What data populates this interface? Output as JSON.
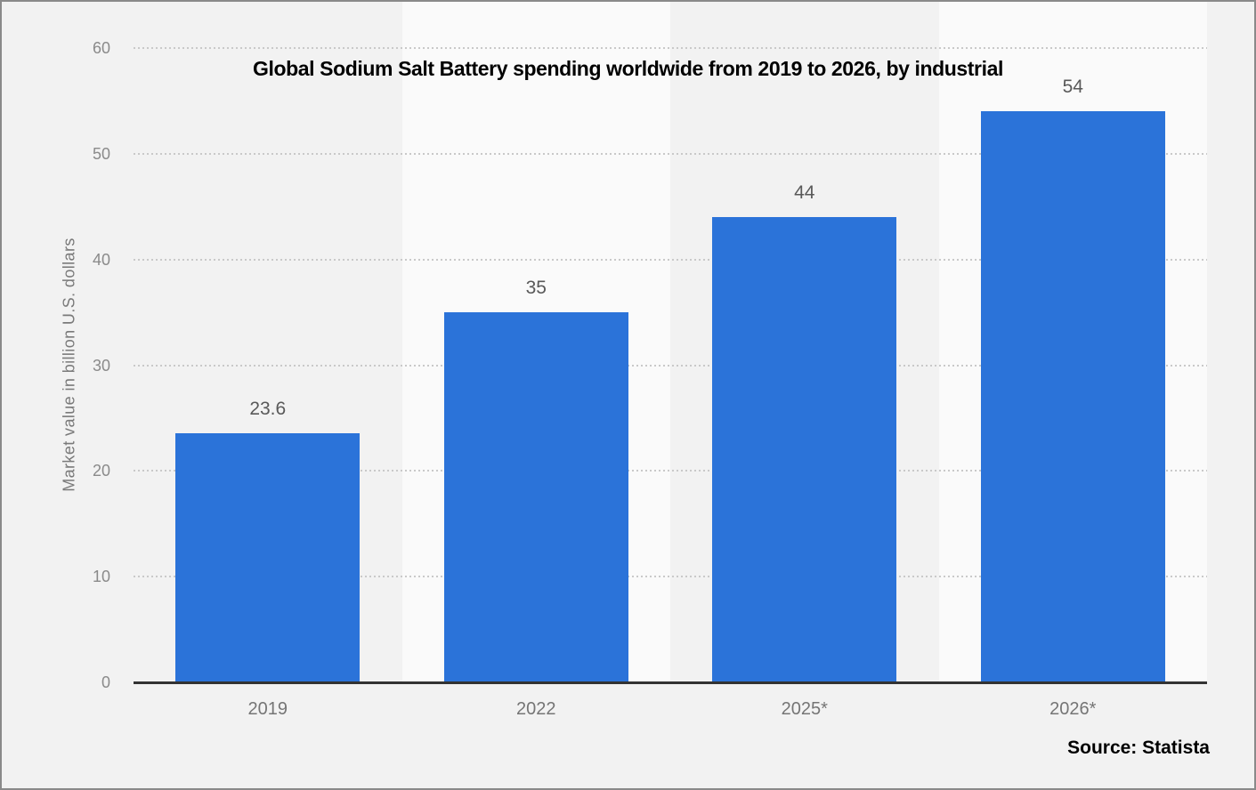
{
  "title": "Global Sodium Salt Battery spending worldwide from 2019 to 2026, by industrial",
  "y_axis_label": "Market value in billion U.S. dollars",
  "source": "Source: Statista",
  "colors": {
    "background": "#f2f2f2",
    "light_band": "#fafafa",
    "bar": "#2b73d9",
    "gridline": "#c9c9c9",
    "axis_line": "#333333",
    "tick_text": "#8a8a8a",
    "category_text": "#757575",
    "value_text": "#595959",
    "title_text": "#000000",
    "frame_border": "#8a8a8a"
  },
  "chart_data": {
    "type": "bar",
    "title": "Global Sodium Salt Battery spending worldwide from 2019 to 2026, by industrial",
    "categories": [
      "2019",
      "2022",
      "2025*",
      "2026*"
    ],
    "values": [
      23.6,
      35,
      44,
      54
    ],
    "value_labels": [
      "23.6",
      "35",
      "44",
      "54"
    ],
    "xlabel": "",
    "ylabel": "Market value in billion U.S. dollars",
    "ylim": [
      0,
      60
    ],
    "yticks": [
      0,
      10,
      20,
      30,
      40,
      50,
      60
    ],
    "grid": "horizontal-dotted",
    "legend_position": "none",
    "bar_color": "#2b73d9",
    "band_fill_alternating": [
      "#f2f2f2",
      "#fafafa"
    ],
    "source": "Source: Statista"
  }
}
